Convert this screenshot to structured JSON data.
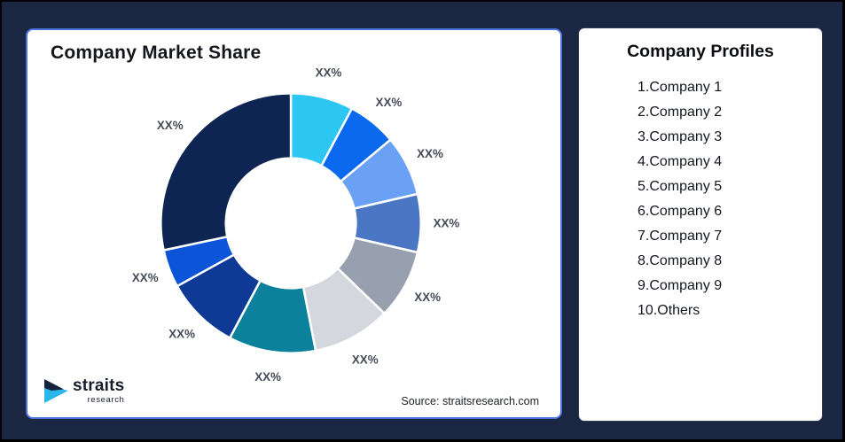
{
  "frame": {
    "background_color": "#1b2642",
    "border_color": "#000000"
  },
  "market_share_card": {
    "title": "Company Market Share",
    "source": "Source: straitsresearch.com",
    "border_color": "#4a70dc",
    "logo": {
      "name": "straits",
      "sub": "research",
      "mark_dark_color": "#16233f",
      "mark_cyan_color": "#29b6ea"
    }
  },
  "profiles_card": {
    "title": "Company Profiles",
    "items": [
      "1.Company 1",
      "2.Company 2",
      "3.Company 3",
      "4.Company 4",
      "5.Company 5",
      "6.Company 6",
      "7.Company 7",
      "8.Company 8",
      "9.Company 9",
      "10.Others"
    ]
  },
  "chart_data": {
    "type": "pie",
    "subtype": "donut",
    "title": "Company Market Share",
    "values_masked": true,
    "center": [
      299,
      220
    ],
    "outer_radius": 148,
    "inner_radius": 74,
    "label_radius": 177,
    "segment_stroke": "#ffffff",
    "label_color": "#454b57",
    "segments": [
      {
        "name": "Company 1",
        "label": "XX%",
        "start_deg": 0,
        "end_deg": 28,
        "approx_share_pct": 7.8,
        "color": "#2bc7f2"
      },
      {
        "name": "Company 2",
        "label": "XX%",
        "start_deg": 28,
        "end_deg": 50,
        "approx_share_pct": 6.1,
        "color": "#0a69ef"
      },
      {
        "name": "Company 3",
        "label": "XX%",
        "start_deg": 50,
        "end_deg": 77,
        "approx_share_pct": 7.5,
        "color": "#6ba1f5"
      },
      {
        "name": "Company 4",
        "label": "XX%",
        "start_deg": 77,
        "end_deg": 103,
        "approx_share_pct": 7.2,
        "color": "#4b76c3"
      },
      {
        "name": "Company 5",
        "label": "XX%",
        "start_deg": 103,
        "end_deg": 134,
        "approx_share_pct": 8.6,
        "color": "#97a0ae"
      },
      {
        "name": "Company 6",
        "label": "XX%",
        "start_deg": 134,
        "end_deg": 169,
        "approx_share_pct": 9.7,
        "color": "#d4d7dd"
      },
      {
        "name": "Company 7",
        "label": "XX%",
        "start_deg": 169,
        "end_deg": 208,
        "approx_share_pct": 10.8,
        "color": "#0c819c"
      },
      {
        "name": "Company 8",
        "label": "XX%",
        "start_deg": 208,
        "end_deg": 241,
        "approx_share_pct": 9.2,
        "color": "#0e3a96"
      },
      {
        "name": "Company 9",
        "label": "XX%",
        "start_deg": 241,
        "end_deg": 258,
        "approx_share_pct": 4.7,
        "color": "#0d55d8"
      },
      {
        "name": "Others",
        "label": "XX%",
        "start_deg": 258,
        "end_deg": 360,
        "approx_share_pct": 28.4,
        "color": "#0e2553"
      }
    ]
  }
}
